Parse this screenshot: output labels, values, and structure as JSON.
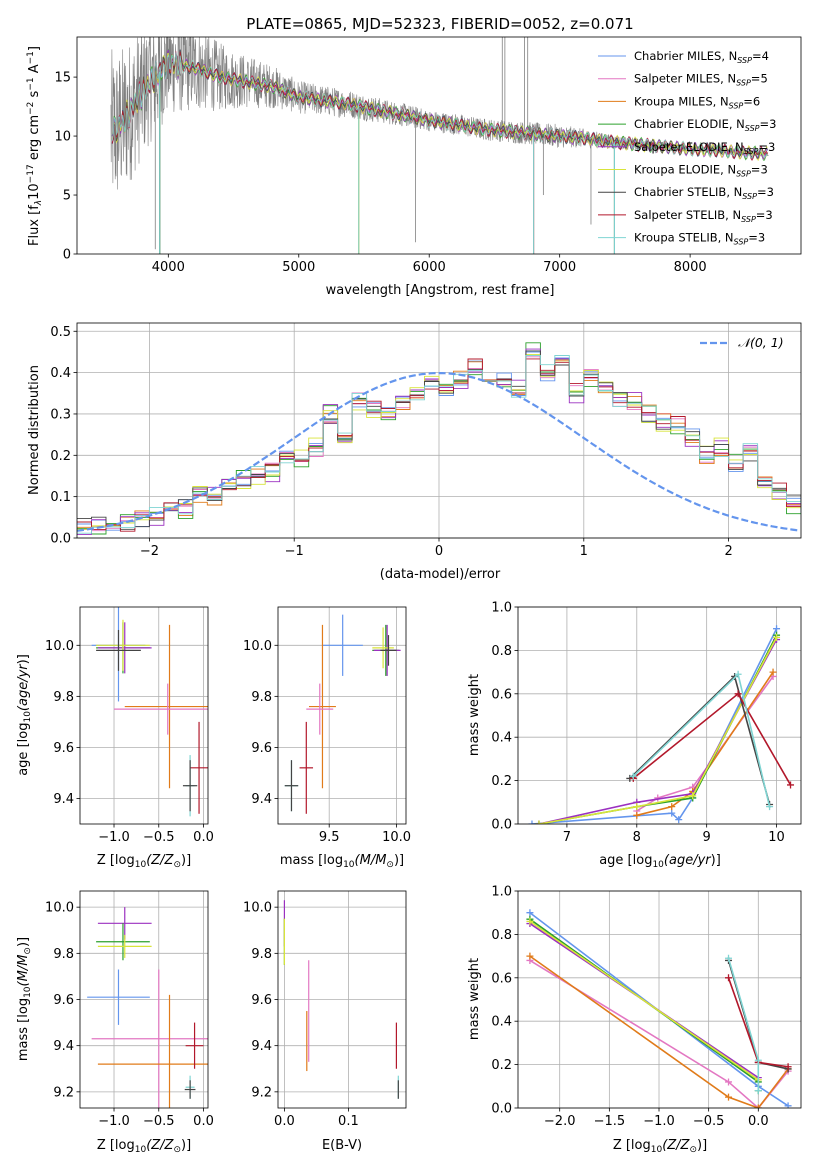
{
  "figure_title": "PLATE=0865, MJD=52323, FIBERID=0052, z=0.071",
  "model_colors": [
    "#6495ed",
    "#e377c2",
    "#e07b1a",
    "#2ca02c",
    "#9b30c0",
    "#d8e43a",
    "#444444",
    "#b2182b",
    "#7fd4d2"
  ],
  "chart_data": [
    {
      "id": "spectrum",
      "type": "line",
      "title": "PLATE=0865, MJD=52323, FIBERID=0052, z=0.071",
      "xlabel": "wavelength [Angstrom, rest frame]",
      "ylabel": "Flux [f",
      "ylabel_parts": [
        "λ",
        "10",
        "−17",
        " erg cm",
        "−2",
        " s",
        "−1",
        " A",
        "−1",
        "]"
      ],
      "xlim": [
        3300,
        8850
      ],
      "ylim": [
        0,
        18.4
      ],
      "xticks": [
        4000,
        5000,
        6000,
        7000,
        8000
      ],
      "yticks": [
        0,
        5,
        10,
        15
      ],
      "grid": false,
      "legend_position": "top-right",
      "legend": [
        {
          "base": "Chabrier MILES, N",
          "n": "4",
          "color": "#6495ed"
        },
        {
          "base": "Salpeter MILES, N",
          "n": "5",
          "color": "#e377c2"
        },
        {
          "base": "Kroupa MILES, N",
          "n": "6",
          "color": "#e07b1a"
        },
        {
          "base": "Chabrier ELODIE, N",
          "n": "3",
          "color": "#2ca02c"
        },
        {
          "base": "Salpeter ELODIE, N",
          "n": "3",
          "color": "#9b30c0"
        },
        {
          "base": "Kroupa ELODIE, N",
          "n": "3",
          "color": "#d8e43a"
        },
        {
          "base": "Chabrier STELIB, N",
          "n": "3",
          "color": "#444444"
        },
        {
          "base": "Salpeter STELIB, N",
          "n": "3",
          "color": "#b2182b"
        },
        {
          "base": "Kroupa STELIB, N",
          "n": "3",
          "color": "#7fd4d2"
        }
      ],
      "legend_sub": "SSP",
      "continuum": [
        [
          3600,
          10.5
        ],
        [
          3700,
          12.0
        ],
        [
          3850,
          14.5
        ],
        [
          4000,
          16.2
        ],
        [
          4200,
          15.8
        ],
        [
          4400,
          15.0
        ],
        [
          4600,
          14.6
        ],
        [
          4800,
          14.2
        ],
        [
          5000,
          13.3
        ],
        [
          5200,
          13.0
        ],
        [
          5400,
          12.7
        ],
        [
          5600,
          12.2
        ],
        [
          5800,
          11.8
        ],
        [
          6000,
          11.3
        ],
        [
          6200,
          11.0
        ],
        [
          6400,
          10.6
        ],
        [
          6600,
          10.4
        ],
        [
          6800,
          10.2
        ],
        [
          7000,
          10.0
        ],
        [
          7200,
          9.8
        ],
        [
          7400,
          9.5
        ],
        [
          7600,
          9.3
        ],
        [
          7800,
          9.1
        ],
        [
          8000,
          8.9
        ],
        [
          8200,
          8.8
        ],
        [
          8400,
          8.6
        ],
        [
          8600,
          8.5
        ]
      ],
      "noise_amplitude": [
        [
          3550,
          7.0
        ],
        [
          4000,
          4.5
        ],
        [
          4500,
          2.5
        ],
        [
          5000,
          1.4
        ],
        [
          6000,
          0.9
        ],
        [
          7000,
          1.0
        ],
        [
          7400,
          0.6
        ],
        [
          8000,
          0.3
        ],
        [
          8600,
          0.2
        ]
      ],
      "data_spikes": [
        [
          3900,
          0.4
        ],
        [
          5895,
          1.0
        ],
        [
          6560,
          18.4
        ],
        [
          6580,
          18.4
        ],
        [
          6730,
          18.4
        ],
        [
          6755,
          18.4
        ],
        [
          6875,
          5.0
        ],
        [
          7240,
          2.5
        ]
      ],
      "model_dips": [
        [
          3934,
          0.0
        ],
        [
          5460,
          0.0
        ],
        [
          6800,
          0.0
        ],
        [
          7420,
          0.0
        ]
      ]
    },
    {
      "id": "residuals",
      "type": "line",
      "xlabel": "(data-model)/error",
      "ylabel": "Normed distribution",
      "xlim": [
        -2.5,
        2.5
      ],
      "ylim": [
        0,
        0.52
      ],
      "xticks": [
        -2,
        -1,
        0,
        1,
        2
      ],
      "yticks": [
        0.0,
        0.1,
        0.2,
        0.3,
        0.4,
        0.5
      ],
      "grid": true,
      "legend_position": "top-right",
      "gaussian_label": "𝒩(0, 1)",
      "gaussian_color": "#6495ed",
      "bin_width": 0.1,
      "bins_start": -2.5,
      "base_histogram": [
        0.025,
        0.03,
        0.03,
        0.04,
        0.05,
        0.05,
        0.07,
        0.07,
        0.11,
        0.1,
        0.14,
        0.14,
        0.15,
        0.16,
        0.19,
        0.19,
        0.22,
        0.3,
        0.24,
        0.33,
        0.31,
        0.31,
        0.33,
        0.35,
        0.38,
        0.35,
        0.38,
        0.41,
        0.38,
        0.38,
        0.36,
        0.45,
        0.4,
        0.43,
        0.35,
        0.39,
        0.36,
        0.34,
        0.33,
        0.3,
        0.28,
        0.27,
        0.24,
        0.2,
        0.22,
        0.18,
        0.21,
        0.14,
        0.11,
        0.08,
        0.07,
        0.07,
        0.05,
        0.06,
        0.08,
        0.08,
        0.05,
        0.05,
        0.03,
        0.025
      ]
    },
    {
      "id": "age_vs_Z",
      "type": "scatter",
      "xlabel": "Z [log",
      "ylabel": "age  [log",
      "xlim": [
        -1.38,
        0.05
      ],
      "ylim": [
        9.3,
        10.15
      ],
      "xticks": [
        -1.0,
        -0.5,
        0.0
      ],
      "yticks": [
        9.4,
        9.6,
        9.8,
        10.0
      ],
      "grid": true,
      "points": [
        {
          "x": -0.95,
          "y": 10.0,
          "xerr": 0.3,
          "yerr": 0.22,
          "color": "#6495ed"
        },
        {
          "x": -0.9,
          "y": 9.99,
          "xerr": 0.3,
          "yerr": 0.1,
          "color": "#2ca02c"
        },
        {
          "x": -0.88,
          "y": 9.99,
          "xerr": 0.3,
          "yerr": 0.1,
          "color": "#9b30c0"
        },
        {
          "x": -0.9,
          "y": 10.0,
          "xerr": 0.3,
          "yerr": 0.1,
          "color": "#d8e43a"
        },
        {
          "x": -0.95,
          "y": 9.98,
          "xerr": 0.25,
          "yerr": 0.08,
          "color": "#444444"
        },
        {
          "x": -0.38,
          "y": 9.76,
          "xerr": 0.5,
          "yerr": 0.32,
          "color": "#e07b1a"
        },
        {
          "x": -0.4,
          "y": 9.75,
          "xerr": 0.6,
          "yerr": 0.1,
          "color": "#e377c2"
        },
        {
          "x": -0.15,
          "y": 9.45,
          "xerr": 0.05,
          "yerr": 0.12,
          "color": "#7fd4d2"
        },
        {
          "x": -0.05,
          "y": 9.52,
          "xerr": 0.1,
          "yerr": 0.18,
          "color": "#b2182b"
        },
        {
          "x": -0.15,
          "y": 9.45,
          "xerr": 0.08,
          "yerr": 0.1,
          "color": "#444444"
        }
      ]
    },
    {
      "id": "age_vs_mass",
      "type": "scatter",
      "xlabel": "mass [log",
      "xlim": [
        9.12,
        10.07
      ],
      "ylim": [
        9.3,
        10.15
      ],
      "xticks": [
        9.5,
        10.0
      ],
      "yticks": [
        9.4,
        9.6,
        9.8,
        10.0
      ],
      "grid": true,
      "points": [
        {
          "x": 9.6,
          "y": 10.0,
          "xerr": 0.15,
          "yerr": 0.12,
          "color": "#6495ed"
        },
        {
          "x": 9.92,
          "y": 9.98,
          "xerr": 0.1,
          "yerr": 0.1,
          "color": "#2ca02c"
        },
        {
          "x": 9.93,
          "y": 9.98,
          "xerr": 0.1,
          "yerr": 0.1,
          "color": "#9b30c0"
        },
        {
          "x": 9.9,
          "y": 9.99,
          "xerr": 0.08,
          "yerr": 0.08,
          "color": "#d8e43a"
        },
        {
          "x": 9.94,
          "y": 9.98,
          "xerr": 0.06,
          "yerr": 0.06,
          "color": "#444444"
        },
        {
          "x": 9.45,
          "y": 9.76,
          "xerr": 0.1,
          "yerr": 0.32,
          "color": "#e07b1a"
        },
        {
          "x": 9.43,
          "y": 9.75,
          "xerr": 0.1,
          "yerr": 0.1,
          "color": "#e377c2"
        },
        {
          "x": 9.22,
          "y": 9.45,
          "xerr": 0.05,
          "yerr": 0.1,
          "color": "#7fd4d2"
        },
        {
          "x": 9.22,
          "y": 9.45,
          "xerr": 0.05,
          "yerr": 0.1,
          "color": "#444444"
        },
        {
          "x": 9.33,
          "y": 9.52,
          "xerr": 0.05,
          "yerr": 0.18,
          "color": "#b2182b"
        }
      ]
    },
    {
      "id": "mass_weight_vs_age",
      "type": "line",
      "xlabel": "age  [log",
      "ylabel": "mass weight",
      "xlim": [
        6.3,
        10.35
      ],
      "ylim": [
        0.0,
        1.0
      ],
      "xticks": [
        7,
        8,
        9,
        10
      ],
      "yticks": [
        0.0,
        0.2,
        0.4,
        0.6,
        0.8,
        1.0
      ],
      "grid": true,
      "series": [
        {
          "color": "#6495ed",
          "x": [
            6.5,
            8.5,
            8.6,
            8.8,
            10.0
          ],
          "y": [
            0.0,
            0.05,
            0.02,
            0.12,
            0.9
          ]
        },
        {
          "color": "#e377c2",
          "x": [
            8.0,
            8.3,
            8.8,
            9.95
          ],
          "y": [
            0.06,
            0.12,
            0.17,
            0.68
          ]
        },
        {
          "color": "#e07b1a",
          "x": [
            8.0,
            8.5,
            8.8,
            9.95
          ],
          "y": [
            0.04,
            0.08,
            0.15,
            0.7
          ]
        },
        {
          "color": "#2ca02c",
          "x": [
            6.6,
            8.0,
            8.8,
            10.0
          ],
          "y": [
            0.0,
            0.08,
            0.12,
            0.87
          ]
        },
        {
          "color": "#9b30c0",
          "x": [
            6.6,
            8.0,
            8.8,
            10.0
          ],
          "y": [
            0.0,
            0.1,
            0.14,
            0.85
          ]
        },
        {
          "color": "#d8e43a",
          "x": [
            6.6,
            8.0,
            8.8,
            10.0
          ],
          "y": [
            0.0,
            0.08,
            0.13,
            0.86
          ]
        },
        {
          "color": "#444444",
          "x": [
            7.9,
            9.4,
            9.9
          ],
          "y": [
            0.21,
            0.68,
            0.09
          ]
        },
        {
          "color": "#b2182b",
          "x": [
            7.95,
            9.45,
            10.2
          ],
          "y": [
            0.21,
            0.6,
            0.18
          ]
        },
        {
          "color": "#7fd4d2",
          "x": [
            7.95,
            9.45,
            9.9
          ],
          "y": [
            0.22,
            0.69,
            0.08
          ]
        }
      ]
    },
    {
      "id": "mass_vs_Z",
      "type": "scatter",
      "xlabel": "Z [log",
      "ylabel": "mass [log",
      "xlim": [
        -1.38,
        0.05
      ],
      "ylim": [
        9.13,
        10.07
      ],
      "xticks": [
        -1.0,
        -0.5,
        0.0
      ],
      "yticks": [
        9.2,
        9.4,
        9.6,
        9.8,
        10.0
      ],
      "grid": true,
      "points": [
        {
          "x": -0.95,
          "y": 9.61,
          "xerr": 0.35,
          "yerr": 0.12,
          "color": "#6495ed"
        },
        {
          "x": -0.88,
          "y": 9.93,
          "xerr": 0.3,
          "yerr": 0.07,
          "color": "#9b30c0"
        },
        {
          "x": -0.9,
          "y": 9.85,
          "xerr": 0.3,
          "yerr": 0.08,
          "color": "#2ca02c"
        },
        {
          "x": -0.88,
          "y": 9.83,
          "xerr": 0.3,
          "yerr": 0.05,
          "color": "#d8e43a"
        },
        {
          "x": -0.5,
          "y": 9.43,
          "xerr": 0.75,
          "yerr": 0.3,
          "color": "#e377c2"
        },
        {
          "x": -0.38,
          "y": 9.32,
          "xerr": 0.8,
          "yerr": 0.3,
          "color": "#e07b1a"
        },
        {
          "x": -0.1,
          "y": 9.4,
          "xerr": 0.1,
          "yerr": 0.1,
          "color": "#b2182b"
        },
        {
          "x": -0.15,
          "y": 9.22,
          "xerr": 0.05,
          "yerr": 0.05,
          "color": "#7fd4d2"
        },
        {
          "x": -0.15,
          "y": 9.21,
          "xerr": 0.06,
          "yerr": 0.04,
          "color": "#444444"
        }
      ]
    },
    {
      "id": "mass_vs_ebv",
      "type": "scatter",
      "xlabel": "E(B-V)",
      "xlim": [
        -0.01,
        0.19
      ],
      "ylim": [
        9.13,
        10.07
      ],
      "xticks": [
        0.0,
        0.1
      ],
      "yticks": [
        9.2,
        9.4,
        9.6,
        9.8,
        10.0
      ],
      "grid": true,
      "points": [
        {
          "x": 0.0,
          "y": 9.93,
          "xerr": 0.0,
          "yerr": 0.1,
          "color": "#9b30c0"
        },
        {
          "x": 0.0,
          "y": 9.85,
          "xerr": 0.0,
          "yerr": 0.1,
          "color": "#2ca02c"
        },
        {
          "x": 0.0,
          "y": 9.85,
          "xerr": 0.0,
          "yerr": 0.1,
          "color": "#d8e43a"
        },
        {
          "x": 0.038,
          "y": 9.55,
          "xerr": 0.0,
          "yerr": 0.22,
          "color": "#e377c2"
        },
        {
          "x": 0.035,
          "y": 9.42,
          "xerr": 0.0,
          "yerr": 0.13,
          "color": "#e07b1a"
        },
        {
          "x": 0.175,
          "y": 9.4,
          "xerr": 0.0,
          "yerr": 0.1,
          "color": "#b2182b"
        },
        {
          "x": 0.178,
          "y": 9.22,
          "xerr": 0.0,
          "yerr": 0.05,
          "color": "#7fd4d2"
        },
        {
          "x": 0.178,
          "y": 9.21,
          "xerr": 0.0,
          "yerr": 0.04,
          "color": "#444444"
        }
      ]
    },
    {
      "id": "mass_weight_vs_Z",
      "type": "line",
      "xlabel": "Z [log",
      "ylabel": "mass weight",
      "xlim": [
        -2.42,
        0.43
      ],
      "ylim": [
        0.0,
        1.0
      ],
      "xticks": [
        -2.0,
        -1.5,
        -1.0,
        -0.5,
        0.0
      ],
      "yticks": [
        0.0,
        0.2,
        0.4,
        0.6,
        0.8,
        1.0
      ],
      "grid": true,
      "series": [
        {
          "color": "#6495ed",
          "x": [
            -2.3,
            0.0,
            0.3
          ],
          "y": [
            0.9,
            0.1,
            0.01
          ]
        },
        {
          "color": "#e377c2",
          "x": [
            -2.3,
            -0.3,
            0.0,
            0.3
          ],
          "y": [
            0.68,
            0.12,
            0.0,
            0.17
          ]
        },
        {
          "color": "#e07b1a",
          "x": [
            -2.3,
            -0.3,
            0.0,
            0.3
          ],
          "y": [
            0.7,
            0.05,
            0.0,
            0.18
          ]
        },
        {
          "color": "#2ca02c",
          "x": [
            -2.3,
            0.0,
            0.0
          ],
          "y": [
            0.87,
            0.12,
            0.08
          ]
        },
        {
          "color": "#9b30c0",
          "x": [
            -2.3,
            0.0
          ],
          "y": [
            0.85,
            0.14
          ]
        },
        {
          "color": "#d8e43a",
          "x": [
            -2.3,
            0.0
          ],
          "y": [
            0.86,
            0.13
          ]
        },
        {
          "color": "#444444",
          "x": [
            -0.3,
            0.0,
            0.3
          ],
          "y": [
            0.68,
            0.21,
            0.18
          ]
        },
        {
          "color": "#b2182b",
          "x": [
            -0.3,
            0.0,
            0.3
          ],
          "y": [
            0.6,
            0.21,
            0.19
          ]
        },
        {
          "color": "#7fd4d2",
          "x": [
            -0.3,
            0.0,
            0.0
          ],
          "y": [
            0.69,
            0.22,
            0.08
          ]
        }
      ]
    }
  ]
}
